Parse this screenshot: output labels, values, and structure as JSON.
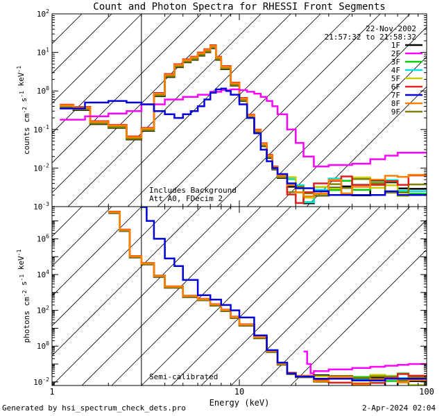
{
  "chart_data": {
    "type": "line",
    "title": "Count and Photon Spectra for RHESSI Front Segments",
    "xlabel": "Energy (keV)",
    "xscale": "log",
    "xlim": [
      1,
      100
    ],
    "x_ticks": [
      {
        "v": 1,
        "label": "1"
      },
      {
        "v": 10,
        "label": "10"
      },
      {
        "v": 100,
        "label": "100"
      }
    ],
    "date_text": "22-Nov-2002",
    "time_text": "21:57:32 to 21:58:32",
    "colors": {
      "1F": "#000000",
      "2F": "#ff00ff",
      "3F": "#00cc00",
      "4F": "#00e0e0",
      "5F": "#cccc00",
      "6F": "#e02020",
      "7F": "#0000dd",
      "8F": "#ff8000",
      "9F": "#808000"
    },
    "legend": [
      "1F",
      "2F",
      "3F",
      "4F",
      "5F",
      "6F",
      "7F",
      "8F",
      "9F"
    ],
    "panels": [
      {
        "id": "counts",
        "ylabel": "counts cm^-2 s^-1 keV^-1",
        "ylim_log10": [
          -3,
          2
        ],
        "y_ticks": [
          {
            "p": 2,
            "mant": "10",
            "exp": "2"
          },
          {
            "p": 1,
            "mant": "10",
            "exp": "1"
          },
          {
            "p": 0,
            "mant": "10",
            "exp": "0"
          },
          {
            "p": -1,
            "mant": "10",
            "exp": "-1"
          },
          {
            "p": -2,
            "mant": "10",
            "exp": "-2"
          },
          {
            "p": -3,
            "mant": "10",
            "exp": "-3"
          }
        ],
        "annotations": [
          "Includes Background",
          "Att A0, FDecim 2"
        ],
        "series": {
          "default": {
            "x": [
              1.1,
              1.3,
              1.6,
              2.0,
              2.5,
              3.0,
              3.5,
              4.0,
              4.5,
              5.0,
              5.5,
              6.0,
              6.5,
              7.0,
              7.5,
              8.0,
              9.0,
              10.0,
              11.0,
              12.0,
              13.0,
              14.0,
              15.0,
              16.0,
              18.0,
              20.0,
              22.0,
              25.0,
              30.0,
              35.0,
              40.0,
              50.0,
              60.0,
              70.0,
              80.0,
              100.0
            ],
            "y": [
              0.4,
              0.35,
              0.15,
              0.12,
              0.06,
              0.1,
              0.8,
              2.5,
              4.5,
              6,
              7,
              9,
              11,
              14,
              7,
              4,
              1.5,
              0.6,
              0.22,
              0.09,
              0.04,
              0.02,
              0.01,
              0.006,
              0.003,
              0.002,
              0.002,
              0.0025,
              0.003,
              0.003,
              0.0035,
              0.003,
              0.0035,
              0.003,
              0.0035,
              0.003
            ]
          },
          "2F": {
            "x": [
              1.1,
              1.5,
              2.0,
              2.5,
              3.0,
              4.0,
              5.0,
              6.0,
              7.0,
              8.0,
              9.0,
              10.0,
              11.0,
              12.0,
              13.0,
              14.0,
              15.0,
              16.0,
              18.0,
              20.0,
              22.0,
              25.0,
              30.0,
              40.0,
              50.0,
              60.0,
              70.0,
              80.0,
              90.0,
              100.0
            ],
            "y": [
              0.18,
              0.22,
              0.26,
              0.3,
              0.45,
              0.6,
              0.7,
              0.8,
              0.95,
              1.05,
              1.1,
              1.05,
              0.95,
              0.85,
              0.7,
              0.55,
              0.4,
              0.25,
              0.1,
              0.045,
              0.02,
              0.011,
              0.012,
              0.013,
              0.017,
              0.021,
              0.025,
              0.025,
              0.025,
              0.025
            ]
          },
          "7F": {
            "x": [
              1.1,
              1.5,
              2.0,
              2.5,
              3.0,
              3.5,
              4.0,
              4.5,
              5.0,
              5.5,
              6.0,
              6.5,
              7.0,
              7.5,
              8.0,
              8.5,
              9.0,
              10.0,
              11.0,
              12.0,
              13.0,
              14.0,
              15.0,
              16.0,
              18.0,
              20.0,
              25.0,
              30.0,
              40.0,
              50.0,
              60.0,
              70.0,
              80.0,
              100.0
            ],
            "y": [
              0.35,
              0.5,
              0.55,
              0.5,
              0.45,
              0.3,
              0.25,
              0.2,
              0.25,
              0.3,
              0.4,
              0.6,
              0.9,
              1.1,
              1.15,
              1.0,
              0.8,
              0.45,
              0.2,
              0.08,
              0.03,
              0.015,
              0.01,
              0.007,
              0.004,
              0.003,
              0.0025,
              0.002,
              0.002,
              0.002,
              0.0025,
              0.002,
              0.002,
              0.002
            ]
          }
        }
      },
      {
        "id": "photons",
        "ylabel": "photons cm^-2 s^-1 keV^-1",
        "ylim_log10": [
          -2.2,
          7.8
        ],
        "y_ticks": [
          {
            "p": 6,
            "mant": "10",
            "exp": "6"
          },
          {
            "p": 4,
            "mant": "10",
            "exp": "4"
          },
          {
            "p": 2,
            "mant": "10",
            "exp": "2"
          },
          {
            "p": 0,
            "mant": "10",
            "exp": "0"
          },
          {
            "p": -2,
            "mant": "10",
            "exp": "-2"
          }
        ],
        "annotations": [
          "Semi-calibrated"
        ],
        "series": {
          "default": {
            "x": [
              2.0,
              2.3,
              2.6,
              3.0,
              3.5,
              4.0,
              5.0,
              6.0,
              7.0,
              8.0,
              9.0,
              10.0,
              12.0,
              14.0,
              16.0,
              18.0,
              20.0,
              25.0,
              30.0,
              40.0,
              50.0,
              60.0,
              70.0,
              80.0,
              100.0
            ],
            "y": [
              30000000.0,
              3000000.0,
              100000.0,
              40000.0,
              8000.0,
              2000.0,
              600,
              400,
              200,
              100,
              40,
              15,
              3,
              0.5,
              0.1,
              0.03,
              0.02,
              0.015,
              0.015,
              0.012,
              0.015,
              0.012,
              0.015,
              0.012,
              0.012
            ]
          },
          "2F": {
            "x": [
              22.0,
              23.0,
              24.0,
              25.0,
              30.0,
              40.0,
              50.0,
              60.0,
              70.0,
              80.0,
              90.0,
              100.0
            ],
            "y": [
              0.5,
              0.1,
              0.03,
              0.04,
              0.05,
              0.06,
              0.07,
              0.08,
              0.09,
              0.1,
              0.1,
              0.1
            ]
          },
          "7F": {
            "x": [
              3.0,
              3.2,
              3.5,
              4.0,
              4.5,
              5.0,
              6.0,
              7.0,
              8.0,
              9.0,
              10.0,
              12.0,
              14.0,
              16.0,
              18.0,
              20.0,
              25.0,
              30.0,
              40.0,
              60.0,
              100.0
            ],
            "y": [
              60000000.0,
              10000000.0,
              1000000.0,
              80000.0,
              30000.0,
              5000.0,
              700,
              400,
              200,
              100,
              40,
              4,
              0.6,
              0.12,
              0.03,
              0.02,
              0.015,
              0.015,
              0.012,
              0.015,
              0.012
            ]
          }
        }
      }
    ]
  },
  "footer": {
    "left": "Generated by hsi_spectrum_check_dets.pro",
    "right": "2-Apr-2024 02:04"
  }
}
